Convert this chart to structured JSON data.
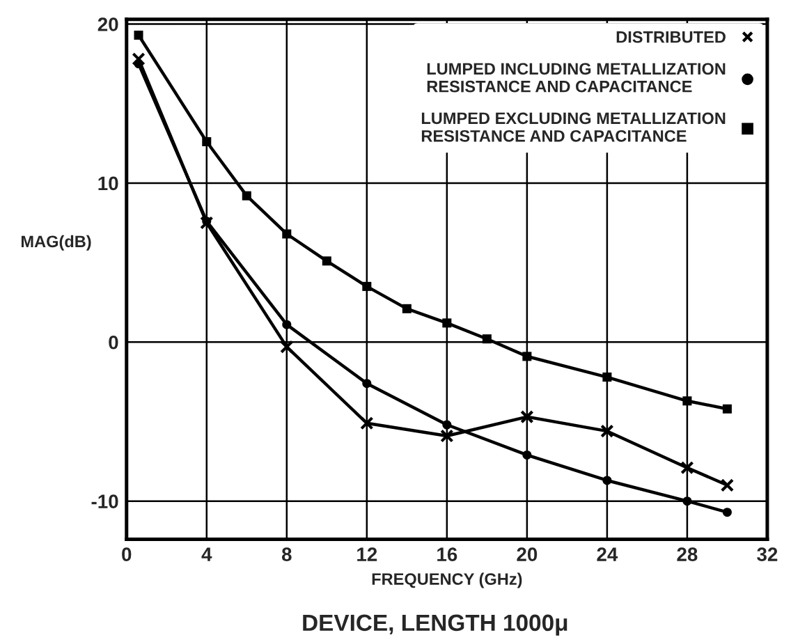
{
  "chart_data": {
    "type": "line",
    "title": "DEVICE, LENGTH 1000μ",
    "xlabel": "FREQUENCY (GHz)",
    "ylabel": "MAG(dB)",
    "xlim": [
      0,
      32
    ],
    "ylim": [
      -12.4,
      20.3
    ],
    "xticks": [
      0,
      4,
      8,
      12,
      16,
      20,
      24,
      28,
      32
    ],
    "yticks": [
      -10,
      0,
      10,
      20
    ],
    "grid": true,
    "legend": "top right",
    "series": [
      {
        "name": "DISTRIBUTED",
        "color": "#000000",
        "marker": "cross",
        "x": [
          0.6,
          4,
          8,
          12,
          16,
          20,
          24,
          28,
          30
        ],
        "values": [
          17.8,
          7.5,
          -0.3,
          -5.1,
          -5.9,
          -4.7,
          -5.6,
          -7.9,
          -9.0
        ]
      },
      {
        "name": "LUMPED INCLUDING METALLIZATION\nRESISTANCE AND CAPACITANCE",
        "color": "#000000",
        "marker": "circle",
        "x": [
          0.6,
          4,
          8,
          12,
          16,
          20,
          24,
          28,
          30
        ],
        "values": [
          17.5,
          7.6,
          1.1,
          -2.6,
          -5.2,
          -7.1,
          -8.7,
          -10.0,
          -10.7
        ]
      },
      {
        "name": "LUMPED EXCLUDING METALLIZATION\nRESISTANCE AND CAPACITANCE",
        "color": "#000000",
        "marker": "square",
        "x": [
          0.6,
          4,
          6,
          8,
          10,
          12,
          14,
          16,
          18,
          20,
          24,
          28,
          30
        ],
        "values": [
          19.3,
          12.6,
          9.2,
          6.8,
          5.1,
          3.5,
          2.1,
          1.2,
          0.2,
          -0.9,
          -2.2,
          -3.7,
          -4.2
        ]
      }
    ]
  }
}
